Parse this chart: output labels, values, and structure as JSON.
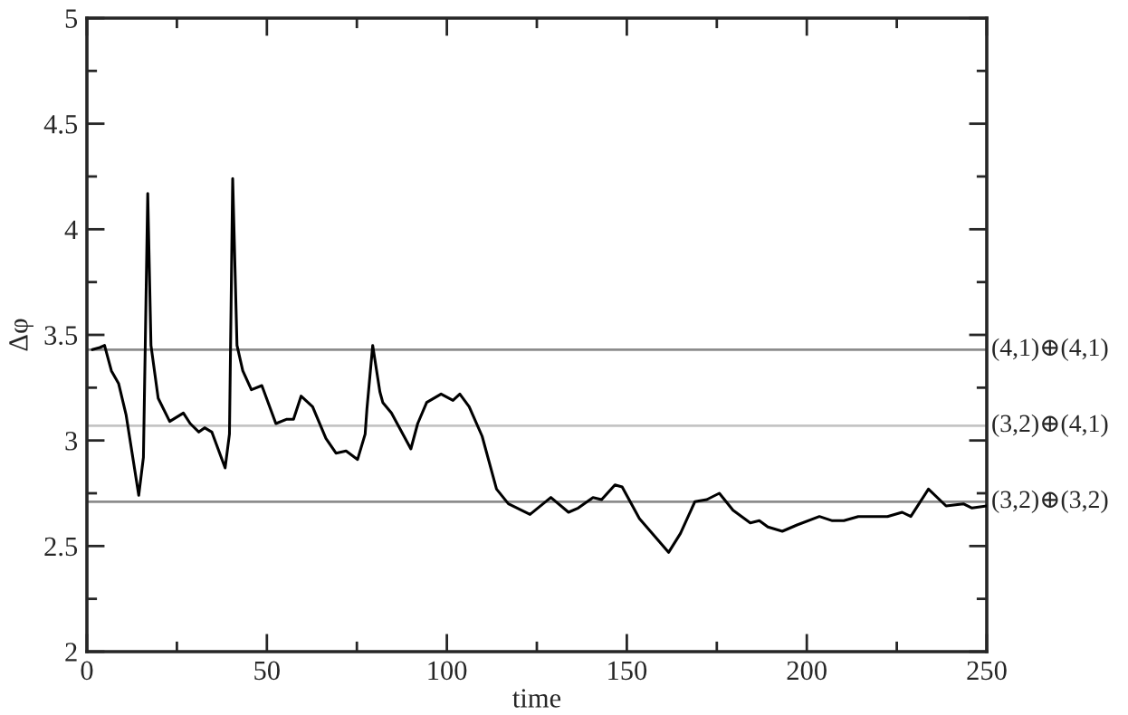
{
  "chart_data": {
    "type": "line",
    "xlabel": "time",
    "ylabel": "Δφ",
    "x": [
      1.5,
      3.6,
      4.9,
      6.8,
      8.8,
      10.9,
      14.4,
      15.7,
      16.9,
      17.8,
      19.8,
      23.0,
      26.8,
      28.7,
      31.1,
      32.7,
      34.7,
      38.4,
      39.6,
      40.5,
      41.7,
      43.3,
      45.7,
      48.6,
      52.5,
      55.4,
      57.4,
      59.5,
      62.7,
      66.4,
      69.2,
      72.0,
      75.2,
      77.3,
      77.8,
      79.4,
      81.4,
      82.2,
      84.6,
      90.0,
      91.9,
      94.4,
      98.4,
      101.7,
      103.6,
      106.2,
      109.8,
      113.8,
      117.1,
      123.1,
      128.9,
      133.8,
      136.5,
      140.6,
      143.0,
      146.7,
      148.7,
      153.5,
      161.6,
      164.9,
      168.9,
      172.2,
      175.7,
      179.5,
      184.3,
      186.8,
      189.2,
      193.2,
      197.3,
      203.5,
      207.1,
      210.3,
      214.3,
      222.4,
      226.5,
      228.9,
      233.8,
      238.7,
      243.5,
      245.9,
      250.0
    ],
    "series": [
      {
        "color": "#000000",
        "values": [
          3.43,
          3.44,
          3.45,
          3.33,
          3.27,
          3.12,
          2.74,
          2.92,
          4.17,
          3.45,
          3.2,
          3.09,
          3.13,
          3.08,
          3.04,
          3.06,
          3.04,
          2.87,
          3.03,
          4.24,
          3.45,
          3.33,
          3.24,
          3.26,
          3.08,
          3.1,
          3.1,
          3.21,
          3.16,
          3.01,
          2.94,
          2.95,
          2.91,
          3.03,
          3.15,
          3.45,
          3.23,
          3.18,
          3.13,
          2.96,
          3.08,
          3.18,
          3.22,
          3.19,
          3.22,
          3.16,
          3.02,
          2.77,
          2.7,
          2.65,
          2.73,
          2.66,
          2.68,
          2.73,
          2.72,
          2.79,
          2.78,
          2.63,
          2.47,
          2.56,
          2.71,
          2.72,
          2.75,
          2.67,
          2.61,
          2.62,
          2.59,
          2.57,
          2.6,
          2.64,
          2.62,
          2.62,
          2.64,
          2.64,
          2.66,
          2.64,
          2.77,
          2.69,
          2.7,
          2.68,
          2.69
        ]
      }
    ],
    "xlim": [
      0,
      250
    ],
    "ylim": [
      2,
      5
    ],
    "xticks": [
      0,
      {
        "value": 25,
        "label": null
      },
      50,
      {
        "value": 75,
        "label": null
      },
      100,
      {
        "value": 125,
        "label": null
      },
      150,
      {
        "value": 175,
        "label": null
      },
      200,
      {
        "value": 225,
        "label": null
      },
      250
    ],
    "yticks": [
      2,
      {
        "value": 2.25,
        "label": null
      },
      2.5,
      {
        "value": 2.75,
        "label": null
      },
      3,
      {
        "value": 3.25,
        "label": null
      },
      3.5,
      {
        "value": 3.75,
        "label": null
      },
      4,
      {
        "value": 4.25,
        "label": null
      },
      4.5,
      {
        "value": 4.75,
        "label": null
      },
      5
    ],
    "ref_lines": [
      {
        "axis": "y",
        "value": 3.43,
        "label": "(4,1)⊕(4,1)",
        "color": "#8c8c8c"
      },
      {
        "axis": "y",
        "value": 3.07,
        "label": "(3,2)⊕(4,1)",
        "color": "#c4c4c4"
      },
      {
        "axis": "y",
        "value": 2.71,
        "label": "(3,2)⊕(3,2)",
        "color": "#8c8c8c"
      }
    ],
    "grid": false,
    "legend": false,
    "marker": "none",
    "line_style": "solid"
  }
}
